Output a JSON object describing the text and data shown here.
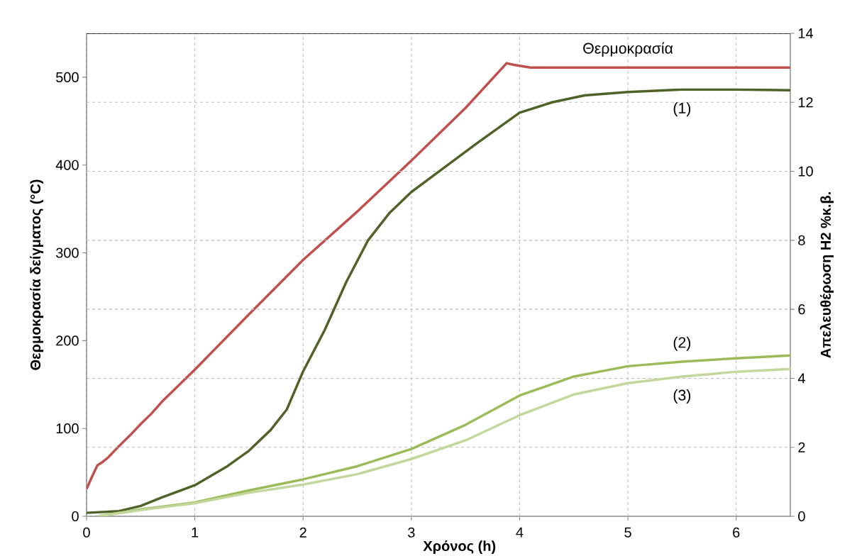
{
  "chart_data": {
    "type": "line",
    "xlabel": "Χρόνος (h)",
    "ylabel": "Θερμοκρασία δείγματος (°C)",
    "y2label": "Απελευθέρωση H2 %κ.β.",
    "xlim": [
      0,
      6.5
    ],
    "xticks": [
      0,
      1,
      2,
      3,
      4,
      5,
      6
    ],
    "ylim": [
      0,
      550
    ],
    "yticks": [
      0,
      100,
      200,
      300,
      400,
      500
    ],
    "y2lim": [
      0,
      14
    ],
    "y2ticks": [
      0,
      2,
      4,
      6,
      8,
      10,
      12,
      14
    ],
    "grid": true,
    "line_style": "solid",
    "marker": "none",
    "series": [
      {
        "name": "Θερμοκρασία",
        "color": "#c0504d",
        "axis": "y",
        "x": [
          0,
          0.05,
          0.1,
          0.15,
          0.2,
          0.3,
          0.4,
          0.5,
          0.6,
          0.7,
          0.8,
          0.9,
          1,
          1.5,
          2,
          2.5,
          3,
          3.5,
          3.88,
          3.95,
          4.1,
          5,
          6,
          6.5
        ],
        "values": [
          31,
          45,
          58,
          62,
          67,
          80,
          92,
          105,
          117,
          131,
          143,
          155,
          167,
          230,
          292,
          347,
          405,
          465,
          516,
          514,
          511,
          511,
          511,
          511
        ]
      },
      {
        "name": "(1)",
        "color": "#4f6228",
        "axis": "y2",
        "x": [
          0,
          0.3,
          0.5,
          0.7,
          1,
          1.3,
          1.5,
          1.7,
          1.85,
          2,
          2.2,
          2.4,
          2.6,
          2.8,
          3,
          3.3,
          3.6,
          4,
          4.3,
          4.6,
          5,
          5.5,
          6,
          6.5
        ],
        "values": [
          0.1,
          0.15,
          0.3,
          0.55,
          0.9,
          1.45,
          1.9,
          2.5,
          3.1,
          4.2,
          5.4,
          6.8,
          8.0,
          8.8,
          9.4,
          10.1,
          10.8,
          11.7,
          12.0,
          12.2,
          12.3,
          12.37,
          12.37,
          12.35
        ]
      },
      {
        "name": "(2)",
        "color": "#9bbb59",
        "axis": "y2",
        "x": [
          0.1,
          0.5,
          1,
          1.5,
          2,
          2.5,
          3,
          3.5,
          4,
          4.5,
          5,
          5.5,
          6,
          6.5
        ],
        "values": [
          0,
          0.2,
          0.4,
          0.75,
          1.07,
          1.45,
          1.95,
          2.65,
          3.5,
          4.05,
          4.35,
          4.48,
          4.58,
          4.66
        ]
      },
      {
        "name": "(3)",
        "color": "#c3d69b",
        "axis": "y2",
        "x": [
          0.1,
          0.5,
          1,
          1.5,
          2,
          2.5,
          3,
          3.5,
          4,
          4.5,
          5,
          5.5,
          6,
          6.5
        ],
        "values": [
          0,
          0.18,
          0.38,
          0.68,
          0.92,
          1.22,
          1.66,
          2.2,
          2.93,
          3.53,
          3.86,
          4.05,
          4.19,
          4.27
        ]
      }
    ]
  }
}
